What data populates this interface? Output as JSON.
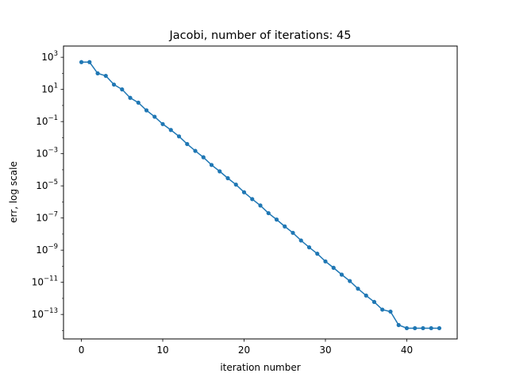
{
  "chart_data": {
    "type": "line",
    "title": "Jacobi, number of iterations: 45",
    "xlabel": "iteration number",
    "ylabel": "err, log scale",
    "y_scale": "log",
    "xlim": [
      -2.2,
      46.2
    ],
    "ylim": [
      3e-15,
      5000
    ],
    "x_ticks": [
      0,
      10,
      20,
      30,
      40
    ],
    "x_tick_labels": [
      "0",
      "10",
      "20",
      "30",
      "40"
    ],
    "y_ticks": [
      1000.0,
      10.0,
      0.1,
      0.001,
      1e-05,
      1e-07,
      1e-09,
      1e-11,
      1e-13
    ],
    "y_tick_labels": [
      {
        "base": "10",
        "exp": "3"
      },
      {
        "base": "10",
        "exp": "1"
      },
      {
        "base": "10",
        "exp": "−1"
      },
      {
        "base": "10",
        "exp": "−3"
      },
      {
        "base": "10",
        "exp": "−5"
      },
      {
        "base": "10",
        "exp": "−7"
      },
      {
        "base": "10",
        "exp": "−9"
      },
      {
        "base": "10",
        "exp": "−11"
      },
      {
        "base": "10",
        "exp": "−13"
      }
    ],
    "grid": false,
    "color": "#1f77b4",
    "series": [
      {
        "x": [
          0,
          1,
          2,
          3,
          4,
          5,
          6,
          7,
          8,
          9,
          10,
          11,
          12,
          13,
          14,
          15,
          16,
          17,
          18,
          19,
          20,
          21,
          22,
          23,
          24,
          25,
          26,
          27,
          28,
          29,
          30,
          31,
          32,
          33,
          34,
          35,
          36,
          37,
          38,
          39,
          40,
          41,
          42,
          43,
          44
        ],
        "values": [
          500,
          500,
          100,
          70,
          20,
          10,
          3,
          1.5,
          0.5,
          0.2,
          0.07,
          0.03,
          0.012,
          0.004,
          0.0015,
          0.0006,
          0.0002,
          8e-05,
          3e-05,
          1.2e-05,
          4e-06,
          1.5e-06,
          6e-07,
          2e-07,
          8e-08,
          3e-08,
          1.2e-08,
          4e-09,
          1.5e-09,
          6e-10,
          2e-10,
          8e-11,
          3e-11,
          1.2e-11,
          4e-12,
          1.5e-12,
          6e-13,
          2e-13,
          1.5e-13,
          2.2e-14,
          1.4e-14,
          1.4e-14,
          1.4e-14,
          1.4e-14,
          1.4e-14
        ]
      }
    ]
  }
}
